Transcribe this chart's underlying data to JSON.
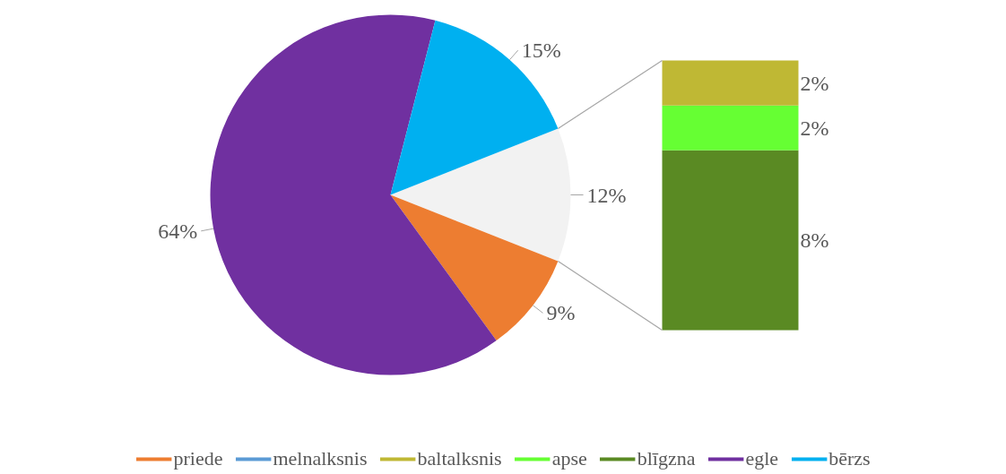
{
  "chart_data": [
    {
      "type": "pie",
      "categories": [
        "priede",
        "melnalksnis",
        null,
        "egle",
        "bērzs"
      ],
      "values": [
        9,
        0,
        12,
        64,
        15
      ],
      "colors": [
        "#ed7d31",
        "#5b9bd5",
        "#f2f2f2",
        "#7030a0",
        "#00b0f0"
      ],
      "value_labels": [
        "9%",
        null,
        "12%",
        "64%",
        "15%"
      ],
      "legend": "bottom"
    },
    {
      "type": "bar",
      "stacked": true,
      "categories": [
        null
      ],
      "series": [
        {
          "name": "blīgzna",
          "color": "#5a8a23",
          "values": [
            8
          ],
          "value_labels": [
            "8%"
          ]
        },
        {
          "name": "apse",
          "color": "#66ff33",
          "values": [
            2
          ],
          "value_labels": [
            "2%"
          ]
        },
        {
          "name": "baltalksnis",
          "color": "#bfb834",
          "values": [
            2
          ],
          "value_labels": [
            "2%"
          ]
        }
      ],
      "legend": "bottom"
    }
  ]
}
